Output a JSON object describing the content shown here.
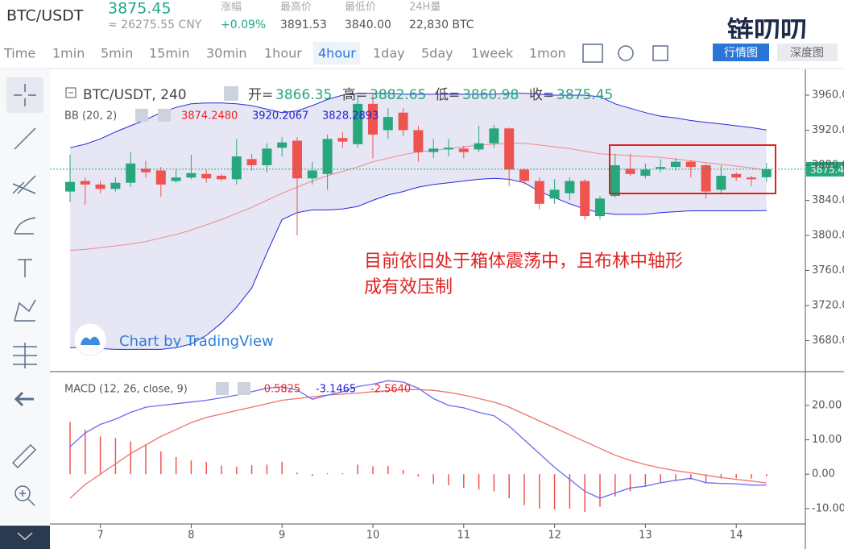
{
  "header": {
    "pair": "BTC/USDT",
    "price": "3875.45",
    "cny": "≈ 26275.55 CNY",
    "stats": [
      {
        "label": "涨幅",
        "value": "+0.09%"
      },
      {
        "label": "最高价",
        "value": "3891.53"
      },
      {
        "label": "最低价",
        "value": "3840.00"
      },
      {
        "label": "24H量",
        "value": "22,830 BTC"
      }
    ],
    "logo": "链叨叨"
  },
  "toolbar": {
    "intervals": [
      "Time",
      "1min",
      "5min",
      "15min",
      "30min",
      "1hour",
      "4hour",
      "1day",
      "5day",
      "1week",
      "1mon"
    ],
    "active": "4hour",
    "views": [
      "行情图",
      "深度图"
    ]
  },
  "chart_data": [
    {
      "type": "candlestick",
      "title": "BTC/USDT, 240",
      "ohlc_labels": [
        "开=",
        "高=",
        "低=",
        "收="
      ],
      "categories": [
        null,
        null,
        "7",
        null,
        null,
        null,
        null,
        null,
        "8",
        null,
        null,
        null,
        null,
        null,
        "9",
        null,
        null,
        null,
        null,
        null,
        "10",
        null,
        null,
        null,
        null,
        null,
        "11",
        null,
        null,
        null,
        null,
        null,
        "12",
        null,
        null,
        null,
        null,
        null,
        "13",
        null,
        null,
        null,
        null,
        null,
        "14",
        null,
        null
      ],
      "open": [
        3850,
        3862,
        3858,
        3853,
        3860,
        3876,
        3874,
        3862,
        3866,
        3870,
        3868,
        3864,
        3887,
        3880,
        3900,
        3908,
        3865,
        3870,
        3911,
        3904,
        3950,
        3920,
        3940,
        3920,
        3895,
        3898,
        3899,
        3898,
        3905,
        3922,
        3875,
        3862,
        3842,
        3848,
        3862,
        3822,
        3845,
        3876,
        3868,
        3876,
        3878,
        3884,
        3880,
        3852,
        3870,
        3866,
        3866.35
      ],
      "high": [
        3892,
        3866,
        3862,
        3866,
        3895,
        3885,
        3878,
        3876,
        3892,
        3875,
        3870,
        3910,
        3893,
        3905,
        3912,
        3912,
        3884,
        3915,
        3918,
        3960,
        3962,
        3945,
        3945,
        3925,
        3910,
        3910,
        3902,
        3925,
        3926,
        3923,
        3877,
        3866,
        3864,
        3866,
        3864,
        3845,
        3893,
        3893,
        3882,
        3887,
        3888,
        3886,
        3882,
        3880,
        3872,
        3868,
        3882.65
      ],
      "low": [
        3838,
        3835,
        3848,
        3850,
        3855,
        3866,
        3844,
        3860,
        3864,
        3860,
        3862,
        3858,
        3874,
        3872,
        3890,
        3800,
        3858,
        3852,
        3900,
        3900,
        3888,
        3910,
        3913,
        3884,
        3888,
        3890,
        3888,
        3895,
        3900,
        3856,
        3858,
        3830,
        3836,
        3840,
        3818,
        3818,
        3843,
        3868,
        3865,
        3872,
        3874,
        3866,
        3842,
        3848,
        3862,
        3856,
        3860.98
      ],
      "close": [
        3861,
        3858,
        3853,
        3860,
        3882,
        3872,
        3858,
        3866,
        3871,
        3865,
        3864,
        3890,
        3880,
        3899,
        3906,
        3865,
        3874,
        3910,
        3907,
        3950,
        3915,
        3935,
        3920,
        3895,
        3899,
        3900,
        3895,
        3905,
        3922,
        3875,
        3862,
        3836,
        3852,
        3862,
        3822,
        3842,
        3880,
        3870,
        3875,
        3878,
        3884,
        3878,
        3850,
        3868,
        3866,
        3864,
        3875.45
      ],
      "up_color": "#26a77c",
      "down_color": "#ef5350",
      "bands": {
        "label": "BB (20, 2)",
        "value_labels": [
          "3874.2480",
          "3920.2067",
          "3828.2893"
        ],
        "middle": {
          "color": "#f08a8a",
          "values": [
            3783,
            3784,
            3786,
            3788,
            3790,
            3793,
            3797,
            3801,
            3806,
            3812,
            3818,
            3825,
            3832,
            3840,
            3848,
            3855,
            3862,
            3868,
            3873,
            3878,
            3884,
            3888,
            3892,
            3895,
            3897,
            3899,
            3901,
            3903,
            3904,
            3905,
            3905,
            3903,
            3901,
            3899,
            3896,
            3893,
            3892,
            3891,
            3890,
            3889,
            3887,
            3885,
            3883,
            3881,
            3879,
            3877,
            3874.248
          ]
        },
        "upper": {
          "color": "#2828e0",
          "values": [
            3900,
            3904,
            3910,
            3918,
            3925,
            3932,
            3940,
            3946,
            3950,
            3951,
            3951,
            3950,
            3948,
            3944,
            3940,
            3942,
            3948,
            3955,
            3960,
            3962,
            3962,
            3962,
            3961,
            3961,
            3961,
            3961,
            3961,
            3961,
            3961,
            3962,
            3962,
            3961,
            3960,
            3960,
            3960,
            3958,
            3950,
            3945,
            3940,
            3936,
            3934,
            3931,
            3929,
            3927,
            3925,
            3923,
            3920.2067
          ]
        },
        "lower": {
          "color": "#2828e0",
          "values": [
            3672,
            3672,
            3671,
            3670,
            3670,
            3670,
            3670,
            3672,
            3676,
            3686,
            3700,
            3718,
            3740,
            3780,
            3818,
            3826,
            3829,
            3829,
            3830,
            3833,
            3840,
            3846,
            3850,
            3855,
            3858,
            3860,
            3862,
            3864,
            3865,
            3864,
            3860,
            3850,
            3843,
            3836,
            3830,
            3826,
            3824,
            3824,
            3824,
            3826,
            3827,
            3828,
            3828,
            3828,
            3828,
            3828,
            3828.2893
          ]
        }
      },
      "ylim": [
        3645.5,
        3985.7
      ],
      "yticks": [
        {
          "value": 3680,
          "label": "3680.00"
        },
        {
          "value": 3720,
          "label": "3720.00"
        },
        {
          "value": 3760,
          "label": "3760.00"
        },
        {
          "value": 3800,
          "label": "3800.00"
        },
        {
          "value": 3840,
          "label": "3840.00"
        },
        {
          "value": 3880,
          "label": "3880.00"
        },
        {
          "value": 3920,
          "label": "3920.00"
        },
        {
          "value": 3960,
          "label": "3960.00"
        }
      ],
      "watermark": "Chart by TradingView",
      "annotation": [
        "目前依旧处于箱体震荡中，且布林中轴形",
        "成有效压制"
      ]
    },
    {
      "type": "macd",
      "title": "MACD (12, 26, close, 9)",
      "value_labels": [
        "-0.5825",
        "-3.1465",
        "-2.5640"
      ],
      "histogram": {
        "color": "#ef5350",
        "values": [
          15.2,
          13,
          11,
          10.5,
          9.5,
          8.5,
          6.6,
          5,
          4,
          3.5,
          2.5,
          2.2,
          2.6,
          2.8,
          3.6,
          0.5,
          -0.5,
          0.3,
          0.3,
          2.8,
          2.3,
          2.4,
          1.2,
          -0.7,
          -2.8,
          -3.2,
          -4,
          -4.5,
          -5,
          -7,
          -9,
          -10,
          -10.3,
          -10,
          -11,
          -9.5,
          -6.5,
          -5,
          -3.5,
          -2.3,
          -1.7,
          -1.6,
          -2.3,
          -1.2,
          -1.2,
          -1.3,
          -0.5825
        ]
      },
      "dif": {
        "color": "#6a6af0",
        "values": [
          8,
          12,
          14.5,
          16,
          18,
          19.5,
          20,
          20.5,
          21,
          21.5,
          22.2,
          23,
          24,
          25,
          25.4,
          24.5,
          21.8,
          23,
          24,
          25.5,
          26.2,
          27.2,
          26.8,
          25,
          22,
          20,
          19.3,
          18,
          17,
          14,
          10,
          6,
          2,
          -1.5,
          -5,
          -7,
          -5.5,
          -4,
          -3.5,
          -2.5,
          -1.8,
          -1.2,
          -2.5,
          -2.7,
          -2.8,
          -3.2,
          -3.1465
        ]
      },
      "dea": {
        "color": "#f07070",
        "values": [
          -7,
          -3,
          0,
          3,
          6,
          8.5,
          11,
          13,
          15,
          16.5,
          17.5,
          18.5,
          19.5,
          20.5,
          21.5,
          22,
          22.5,
          23,
          23.3,
          23.6,
          24,
          24.3,
          24.6,
          24.6,
          24.4,
          23.8,
          23,
          22,
          21,
          19.5,
          17.5,
          15.5,
          13.5,
          11.5,
          9.5,
          7.5,
          5.5,
          4,
          2.8,
          1.8,
          1,
          0.4,
          -0.3,
          -1,
          -1.5,
          -2,
          -2.564
        ]
      },
      "ylim": [
        -14.5,
        29.6
      ],
      "yticks": [
        {
          "value": -10,
          "label": "-10.00"
        },
        {
          "value": 0,
          "label": "0.00"
        },
        {
          "value": 10,
          "label": "10.00"
        },
        {
          "value": 20,
          "label": "20.00"
        }
      ]
    }
  ]
}
